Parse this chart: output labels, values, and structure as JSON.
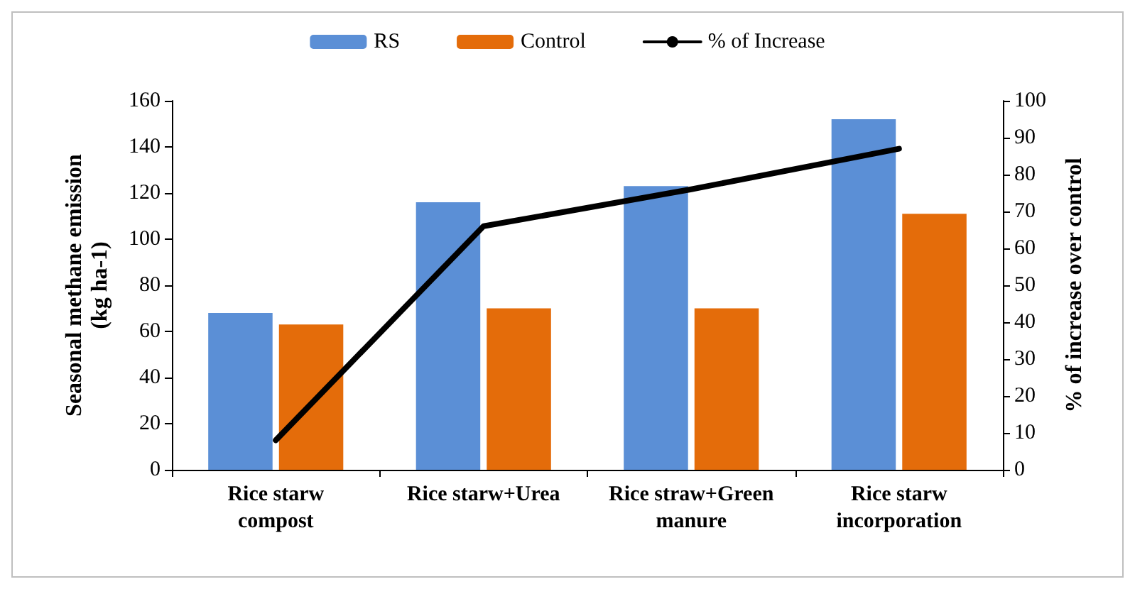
{
  "chart_data": {
    "type": "bar",
    "categories": [
      "Rice starw\ncompost",
      "Rice starw+Urea",
      "Rice straw+Green\nmanure",
      "Rice starw\nincorporation"
    ],
    "ylabel": "Seasonal methane emission\n(kg ha-1)",
    "y2label": "% of increase over control",
    "series": [
      {
        "name": "RS",
        "color": "#5b8fd6",
        "values": [
          68,
          116,
          123,
          152
        ]
      },
      {
        "name": "Control",
        "color": "#e46c0a",
        "values": [
          63,
          70,
          70,
          111
        ]
      },
      {
        "name": "% of Increase",
        "type": "line",
        "axis": "y2",
        "color": "#000000",
        "values": [
          8,
          66,
          76,
          87
        ]
      }
    ],
    "ylim": [
      0,
      160
    ],
    "yticks": [
      0,
      20,
      40,
      60,
      80,
      100,
      120,
      140,
      160
    ],
    "y2lim": [
      0,
      100
    ],
    "y2ticks": [
      0,
      10,
      20,
      30,
      40,
      50,
      60,
      70,
      80,
      90,
      100
    ],
    "grid": false,
    "legend": "top",
    "marker": "none",
    "line_style": "solid"
  }
}
